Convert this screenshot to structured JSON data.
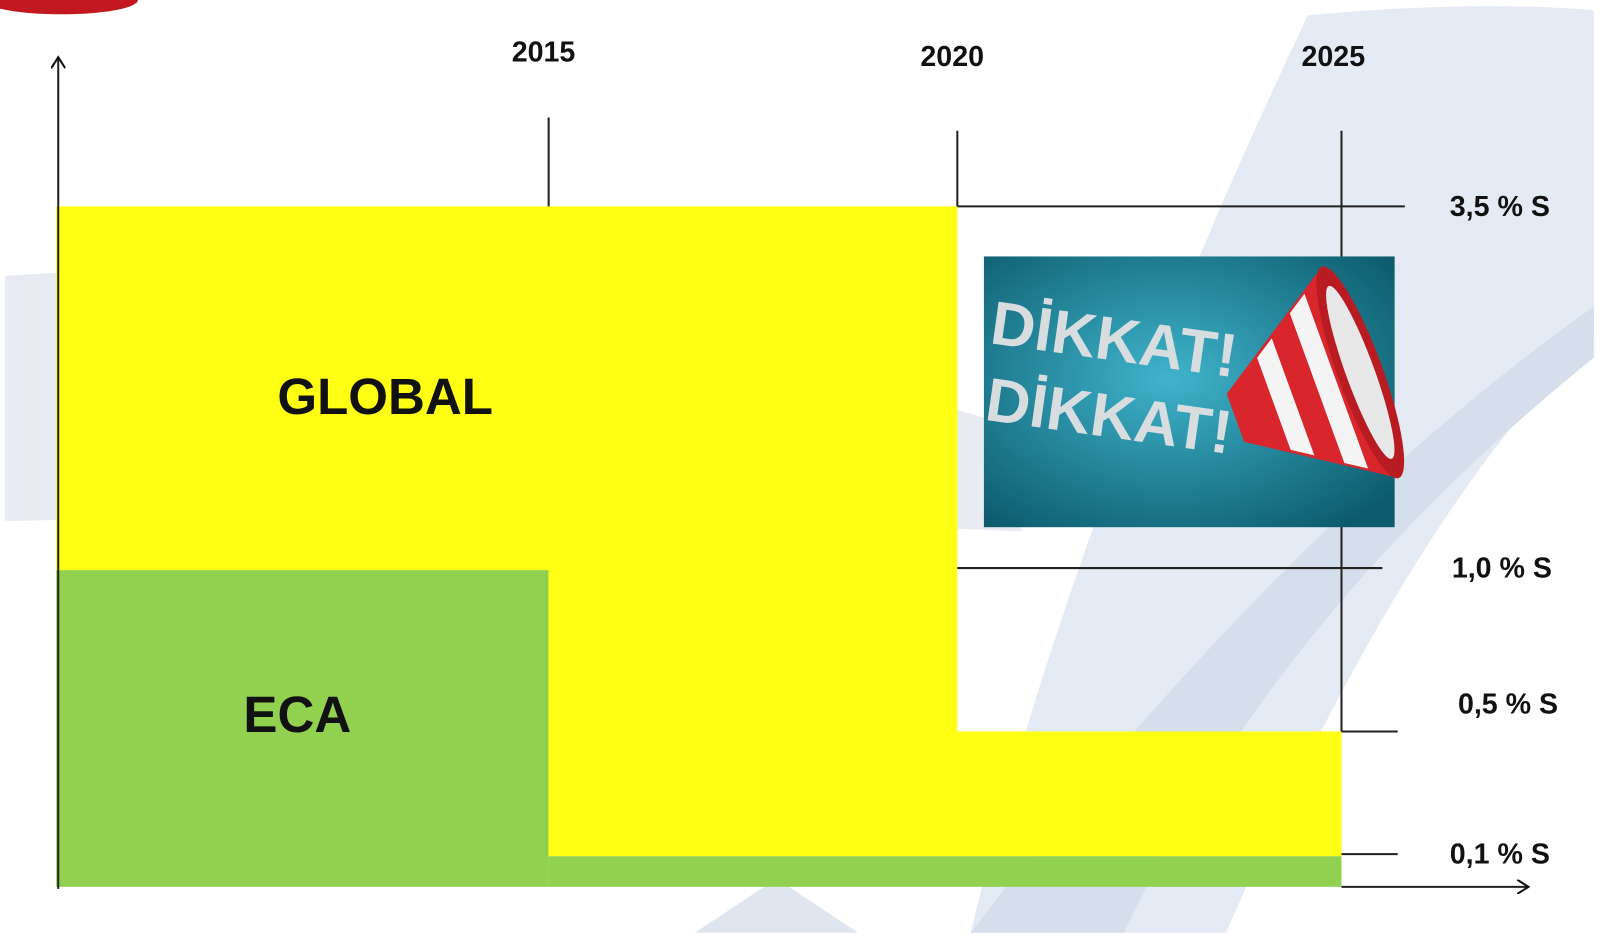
{
  "axis": {
    "years": [
      "2015",
      "2020",
      "2025"
    ],
    "sulfur_limits": [
      "3,5 % S",
      "1,0 % S",
      "0,5 % S",
      "0,1 % S"
    ]
  },
  "regions": [
    "GLOBAL",
    "ECA"
  ],
  "warning": {
    "lines": [
      "DİKKAT!",
      "DİKKAT!"
    ]
  }
}
